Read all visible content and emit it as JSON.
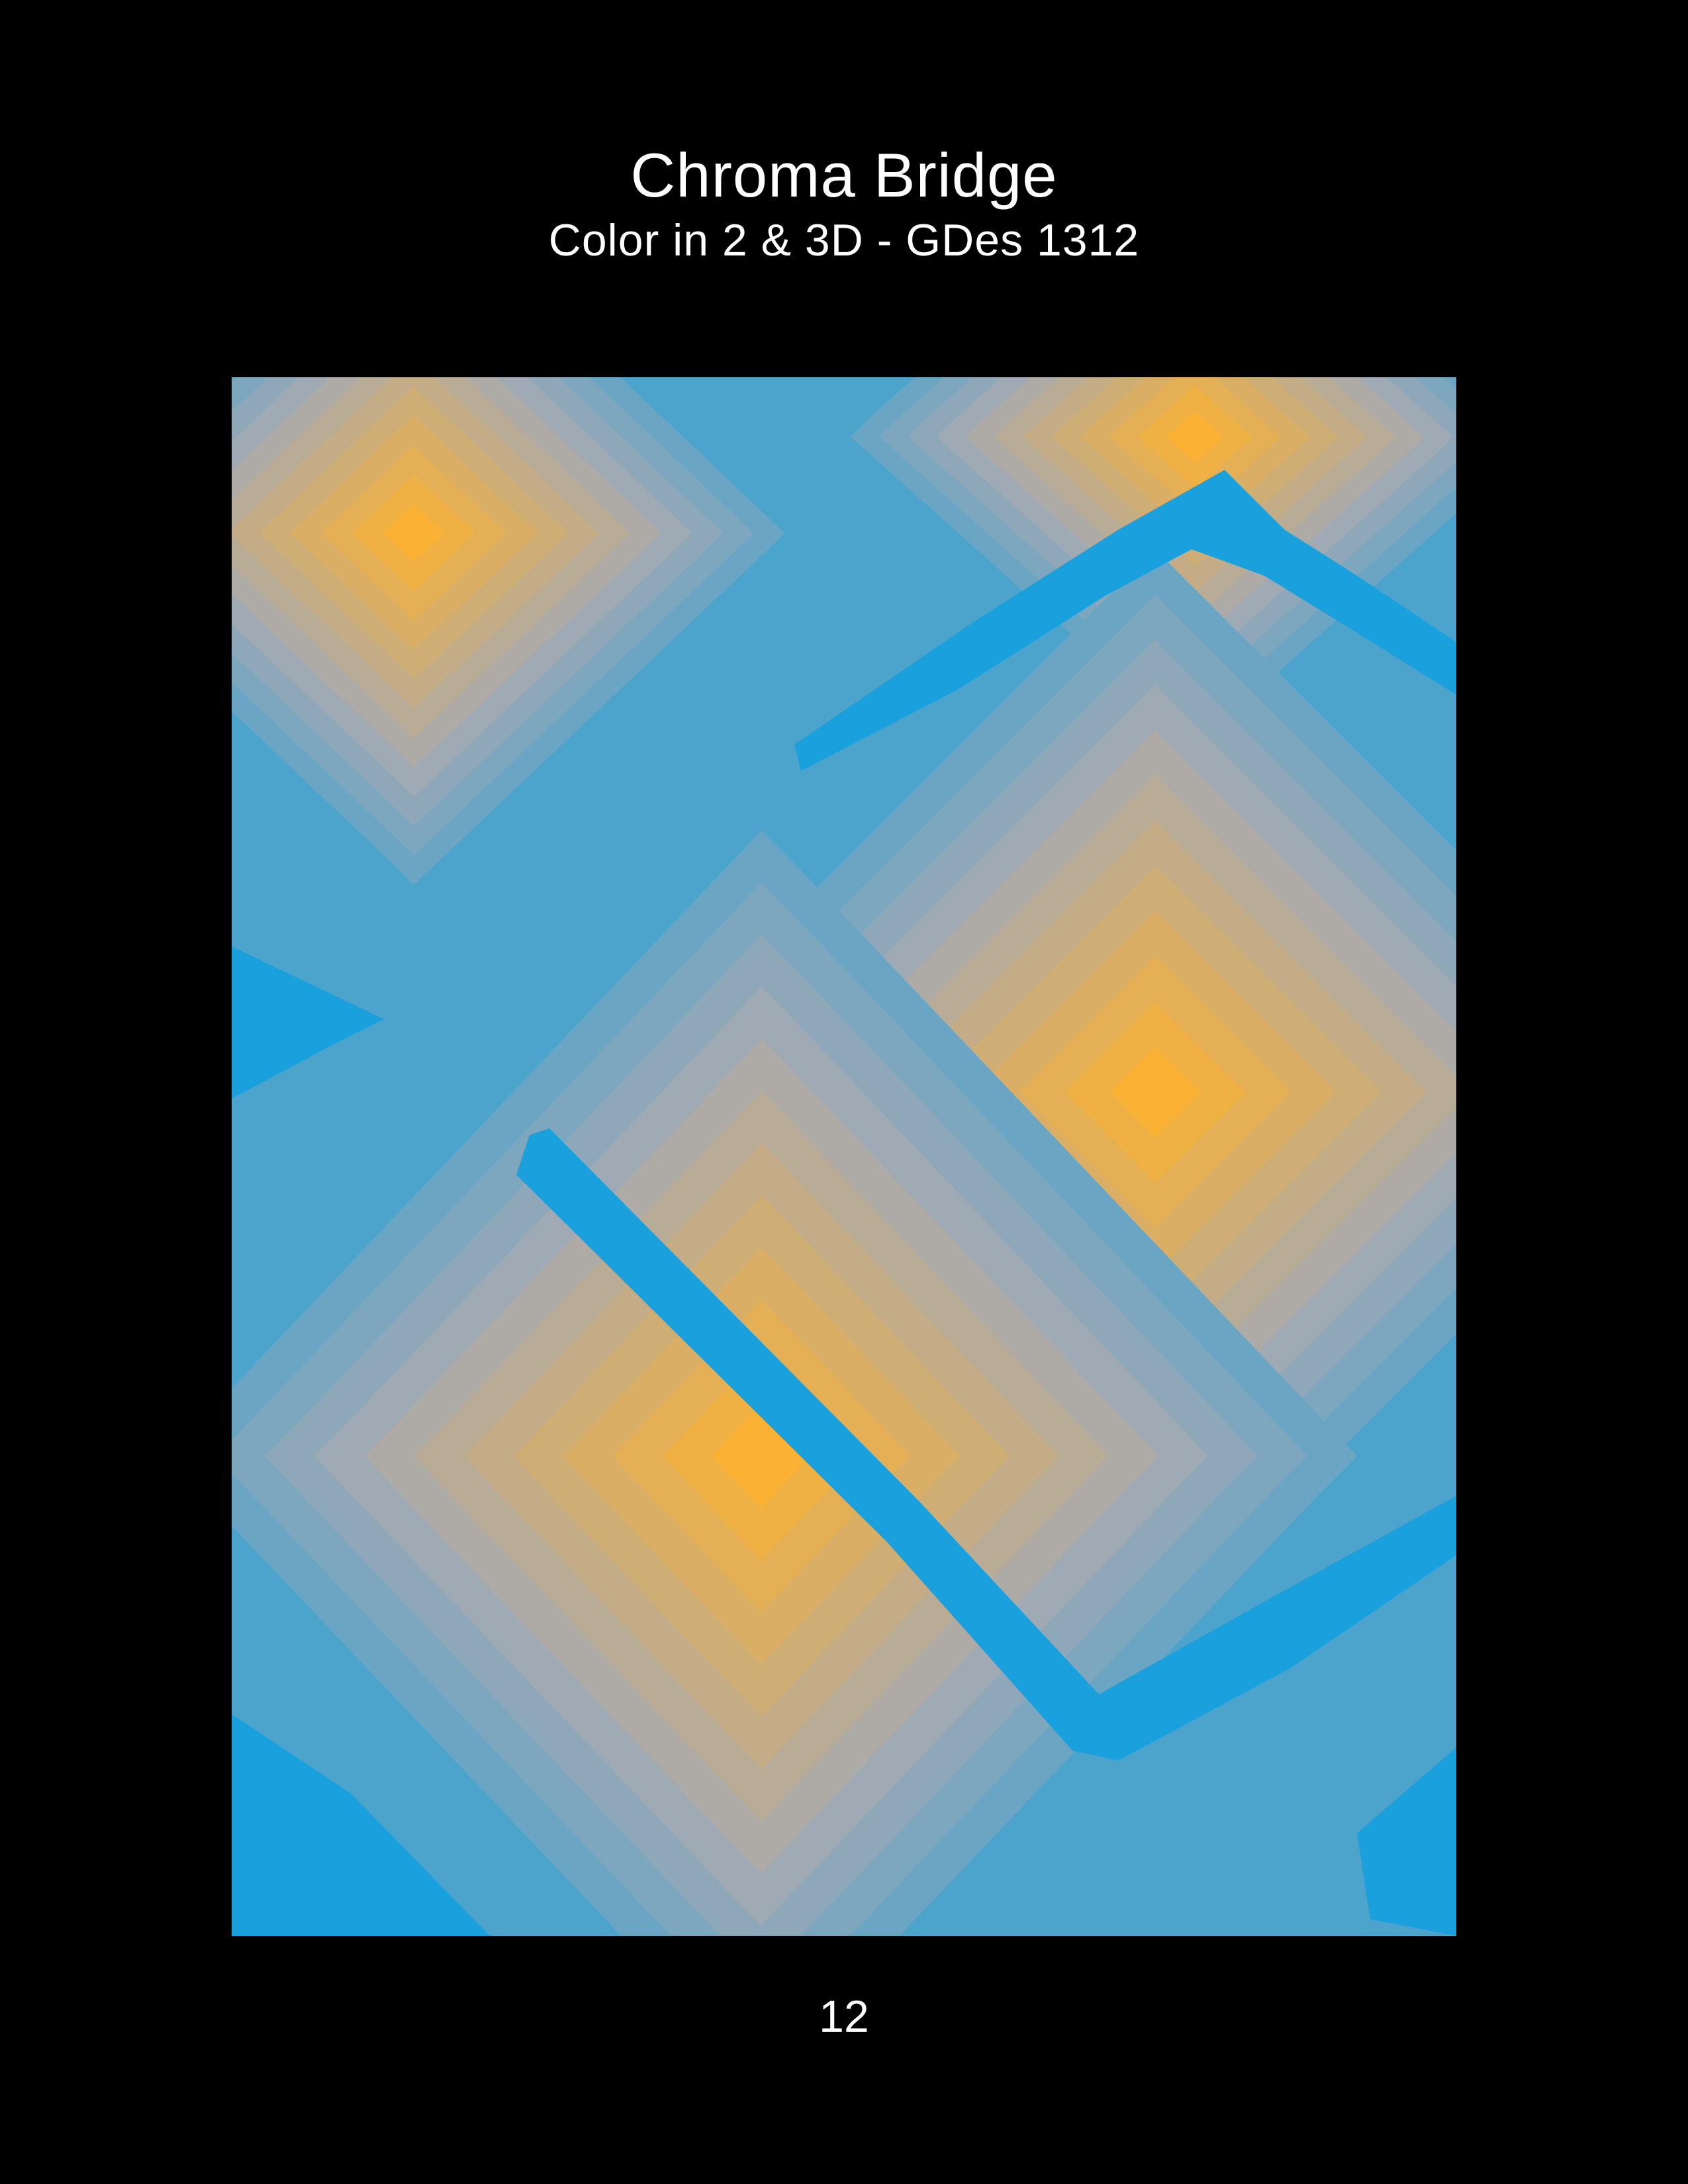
{
  "page": {
    "title": "Chroma Bridge",
    "subtitle": "Color in 2 & 3D - GDes 1312",
    "page_number": "12"
  },
  "palette": {
    "background": "#000000",
    "text": "#ffffff",
    "blue": "#1aa0dc",
    "orange": "#fbb234"
  },
  "artwork": {
    "type": "stepped-gradient-rings",
    "steps": 12,
    "shapes": [
      "diamond",
      "diamond",
      "diamond",
      "diamond"
    ]
  }
}
